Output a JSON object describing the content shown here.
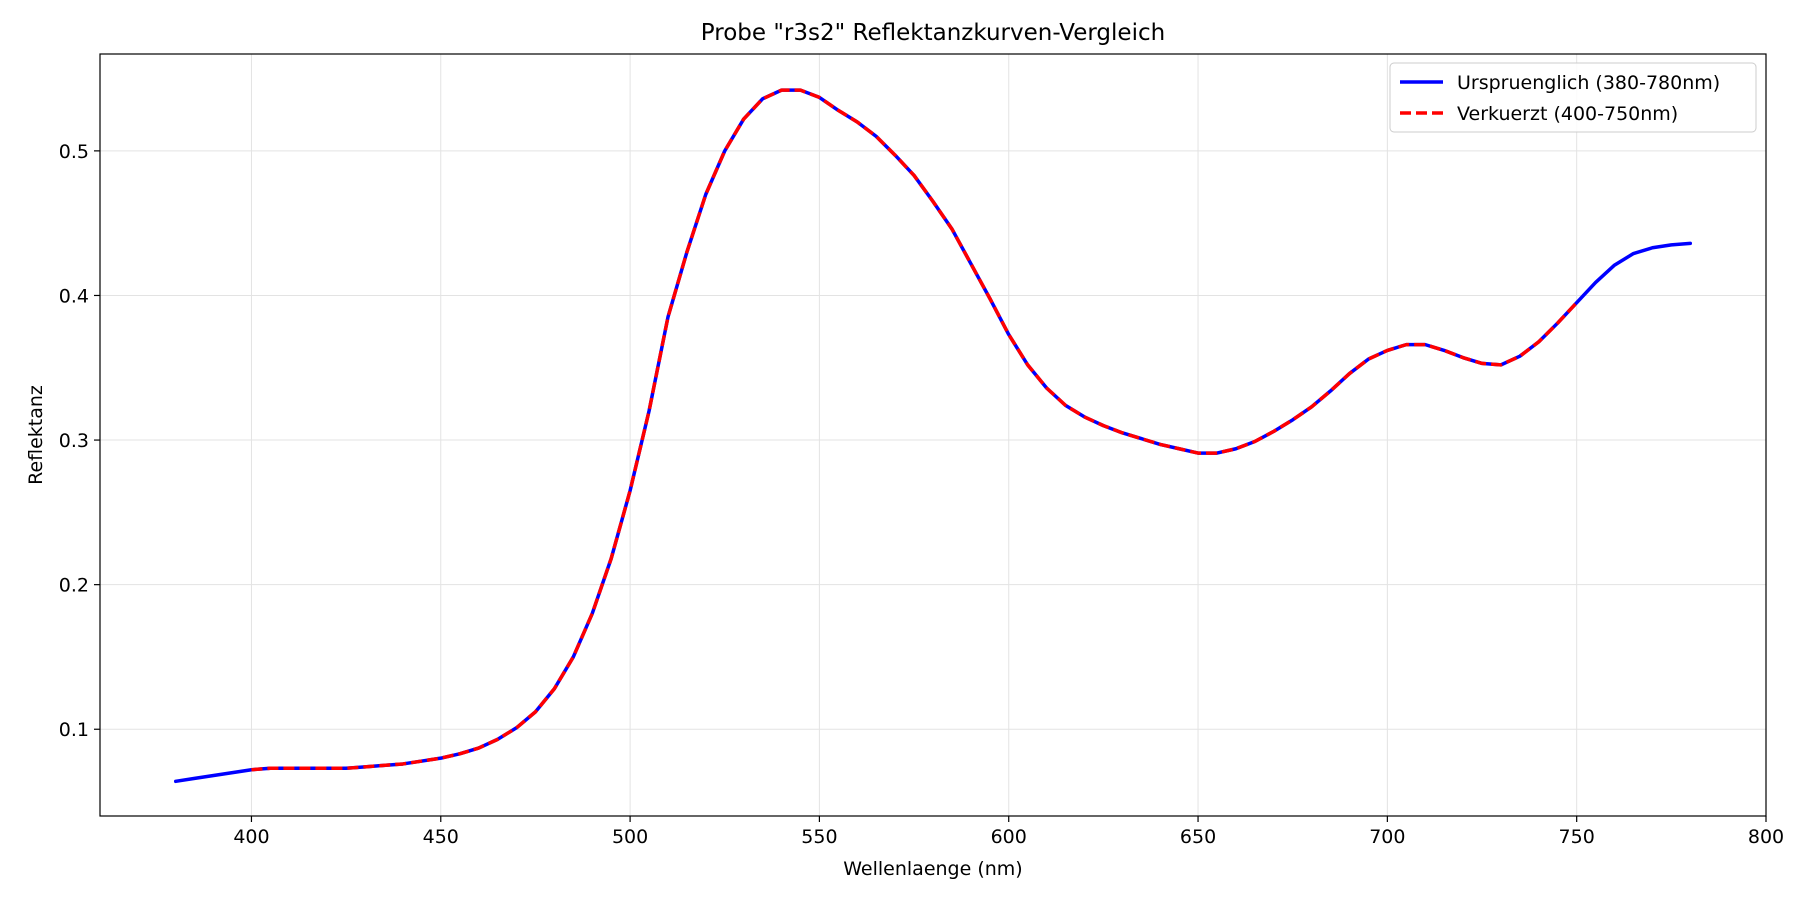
{
  "chart_data": {
    "type": "line",
    "title": "Probe \"r3s2\" Reflektanzkurven-Vergleich",
    "xlabel": "Wellenlaenge (nm)",
    "ylabel": "Reflektanz",
    "xlim": [
      360,
      800
    ],
    "ylim": [
      0.04,
      0.567
    ],
    "x_ticks": [
      400,
      450,
      500,
      550,
      600,
      650,
      700,
      750,
      800
    ],
    "y_ticks": [
      0.1,
      0.2,
      0.3,
      0.4,
      0.5
    ],
    "x_tick_labels": [
      "400",
      "450",
      "500",
      "550",
      "600",
      "650",
      "700",
      "750",
      "800"
    ],
    "y_tick_labels": [
      "0.1",
      "0.2",
      "0.3",
      "0.4",
      "0.5"
    ],
    "grid": true,
    "legend_position": "top-right",
    "series": [
      {
        "name": "Urspruenglich (380-780nm)",
        "color": "#0000ff",
        "style": "solid",
        "x": [
          380,
          385,
          390,
          395,
          400,
          405,
          410,
          415,
          420,
          425,
          430,
          435,
          440,
          445,
          450,
          455,
          460,
          465,
          470,
          475,
          480,
          485,
          490,
          495,
          500,
          505,
          510,
          515,
          520,
          525,
          530,
          535,
          540,
          545,
          550,
          555,
          560,
          565,
          570,
          575,
          580,
          585,
          590,
          595,
          600,
          605,
          610,
          615,
          620,
          625,
          630,
          635,
          640,
          645,
          650,
          655,
          660,
          665,
          670,
          675,
          680,
          685,
          690,
          695,
          700,
          705,
          710,
          715,
          720,
          725,
          730,
          735,
          740,
          745,
          750,
          755,
          760,
          765,
          770,
          775,
          780
        ],
        "y": [
          0.064,
          0.066,
          0.068,
          0.07,
          0.072,
          0.073,
          0.073,
          0.073,
          0.073,
          0.073,
          0.074,
          0.075,
          0.076,
          0.078,
          0.08,
          0.083,
          0.087,
          0.093,
          0.101,
          0.112,
          0.128,
          0.15,
          0.18,
          0.218,
          0.265,
          0.32,
          0.385,
          0.43,
          0.47,
          0.5,
          0.522,
          0.536,
          0.542,
          0.542,
          0.537,
          0.528,
          0.52,
          0.51,
          0.497,
          0.483,
          0.465,
          0.446,
          0.422,
          0.398,
          0.373,
          0.352,
          0.336,
          0.324,
          0.316,
          0.31,
          0.305,
          0.301,
          0.297,
          0.294,
          0.291,
          0.291,
          0.294,
          0.299,
          0.306,
          0.314,
          0.323,
          0.334,
          0.346,
          0.356,
          0.362,
          0.366,
          0.366,
          0.362,
          0.357,
          0.353,
          0.352,
          0.358,
          0.368,
          0.381,
          0.395,
          0.409,
          0.421,
          0.429,
          0.433,
          0.435,
          0.436
        ]
      },
      {
        "name": "Verkuerzt (400-750nm)",
        "color": "#ff0000",
        "style": "dashed",
        "x": [
          400,
          405,
          410,
          415,
          420,
          425,
          430,
          435,
          440,
          445,
          450,
          455,
          460,
          465,
          470,
          475,
          480,
          485,
          490,
          495,
          500,
          505,
          510,
          515,
          520,
          525,
          530,
          535,
          540,
          545,
          550,
          555,
          560,
          565,
          570,
          575,
          580,
          585,
          590,
          595,
          600,
          605,
          610,
          615,
          620,
          625,
          630,
          635,
          640,
          645,
          650,
          655,
          660,
          665,
          670,
          675,
          680,
          685,
          690,
          695,
          700,
          705,
          710,
          715,
          720,
          725,
          730,
          735,
          740,
          745,
          750
        ],
        "y": [
          0.072,
          0.073,
          0.073,
          0.073,
          0.073,
          0.073,
          0.074,
          0.075,
          0.076,
          0.078,
          0.08,
          0.083,
          0.087,
          0.093,
          0.101,
          0.112,
          0.128,
          0.15,
          0.18,
          0.218,
          0.265,
          0.32,
          0.385,
          0.43,
          0.47,
          0.5,
          0.522,
          0.536,
          0.542,
          0.542,
          0.537,
          0.528,
          0.52,
          0.51,
          0.497,
          0.483,
          0.465,
          0.446,
          0.422,
          0.398,
          0.373,
          0.352,
          0.336,
          0.324,
          0.316,
          0.31,
          0.305,
          0.301,
          0.297,
          0.294,
          0.291,
          0.291,
          0.294,
          0.299,
          0.306,
          0.314,
          0.323,
          0.334,
          0.346,
          0.356,
          0.362,
          0.366,
          0.366,
          0.362,
          0.357,
          0.353,
          0.352,
          0.358,
          0.368,
          0.381,
          0.395
        ]
      }
    ]
  }
}
